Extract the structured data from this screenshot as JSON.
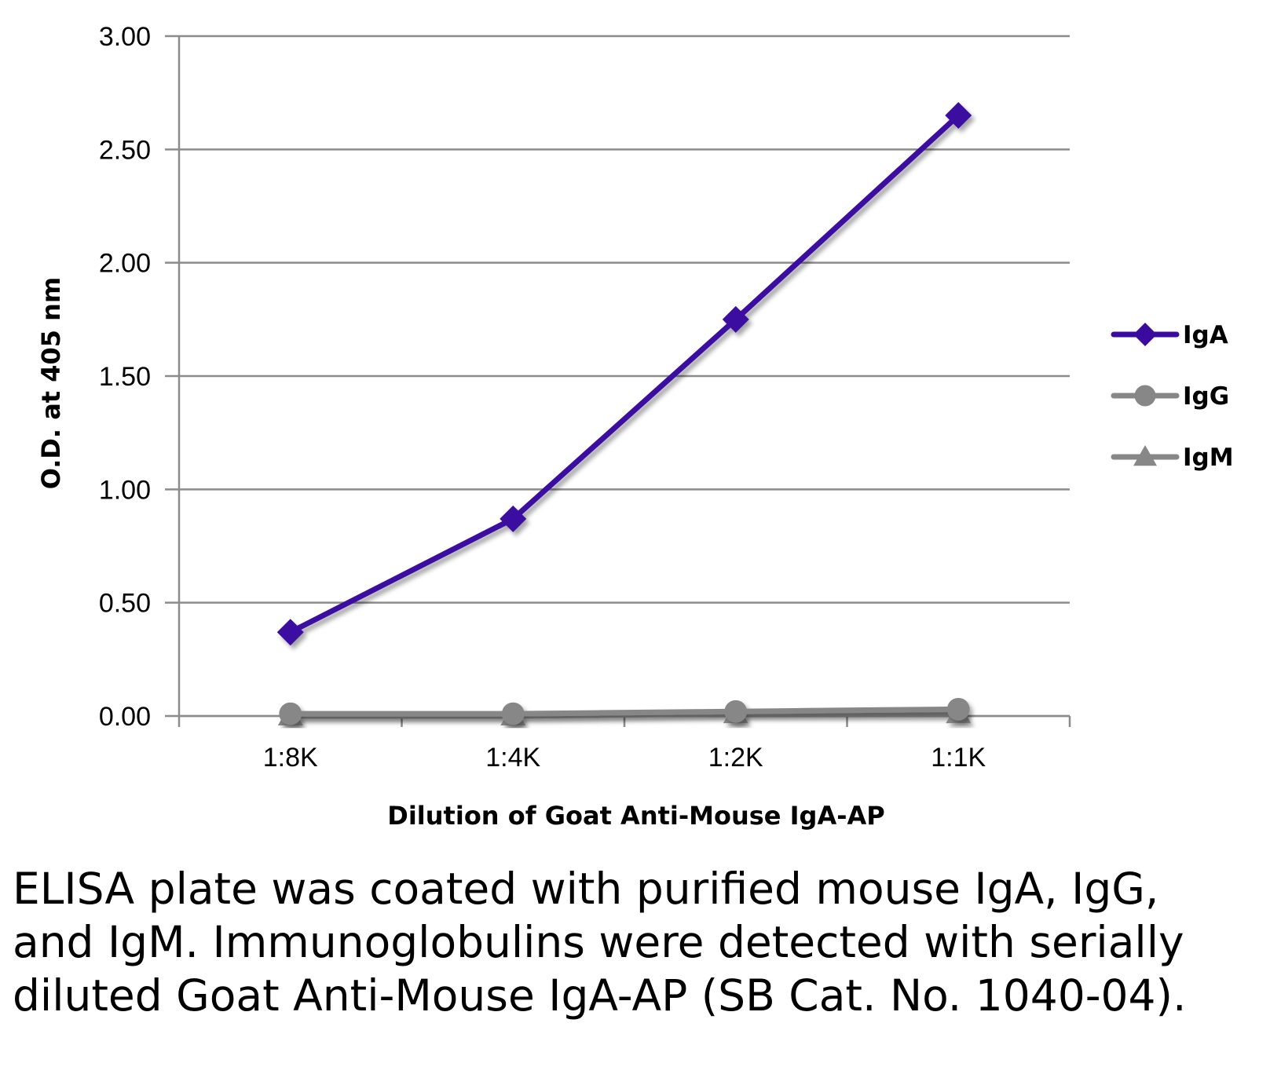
{
  "chart_data": {
    "type": "line",
    "title": "",
    "xlabel": "Dilution of Goat Anti-Mouse IgA-AP",
    "ylabel": "O.D. at 405 nm",
    "categories": [
      "1:8K",
      "1:4K",
      "1:2K",
      "1:1K"
    ],
    "ylim": [
      0,
      3
    ],
    "yticks": [
      "0.00",
      "0.50",
      "1.00",
      "1.50",
      "2.00",
      "2.50",
      "3.00"
    ],
    "ytick_values": [
      0,
      0.5,
      1,
      1.5,
      2,
      2.5,
      3
    ],
    "grid": true,
    "legend_position": "right",
    "series": [
      {
        "name": "IgA",
        "values": [
          0.37,
          0.87,
          1.75,
          2.65
        ],
        "color": "#3B0BA0",
        "marker": "diamond"
      },
      {
        "name": "IgG",
        "values": [
          0.01,
          0.01,
          0.02,
          0.03
        ],
        "color": "#878787",
        "marker": "circle"
      },
      {
        "name": "IgM",
        "values": [
          0.0,
          0.0,
          0.01,
          0.01
        ],
        "color": "#878787",
        "marker": "triangle"
      }
    ]
  },
  "caption": "ELISA plate was coated with purified mouse IgA, IgG, and IgM.  Immunoglobulins were detected with serially diluted Goat Anti-Mouse IgA-AP (SB Cat. No. 1040-04)."
}
